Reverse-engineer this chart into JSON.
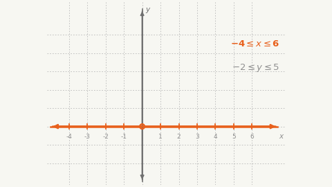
{
  "bg_color": "#f7f7f2",
  "grid_color": "#b8b8b8",
  "axis_color": "#707070",
  "orange_color": "#e8601c",
  "gray_text_color": "#909090",
  "x_min": -5.2,
  "x_max": 7.8,
  "y_min": -3.2,
  "y_max": 6.8,
  "x_ticks": [
    -4,
    -3,
    -2,
    -1,
    1,
    2,
    3,
    4,
    5,
    6
  ],
  "x_grid_lines": [
    -4,
    -3,
    -2,
    -1,
    0,
    1,
    2,
    3,
    4,
    5,
    6
  ],
  "y_grid_lines": [
    -2,
    -1,
    0,
    1,
    2,
    3,
    4,
    5
  ],
  "xlabel": "x",
  "ylabel": "y"
}
